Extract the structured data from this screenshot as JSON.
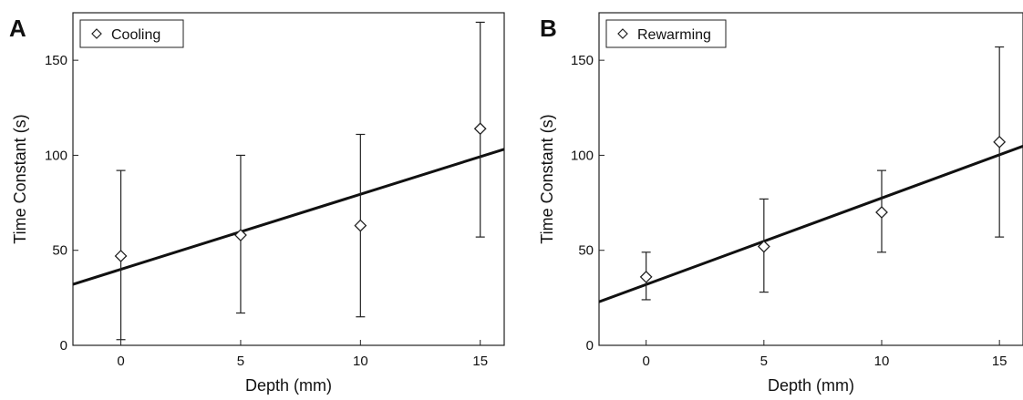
{
  "chart_data": [
    {
      "type": "scatter",
      "panel_label": "A",
      "title": "",
      "xlabel": "Depth (mm)",
      "ylabel": "Time Constant (s)",
      "xlim": [
        -2,
        16
      ],
      "ylim": [
        0,
        175
      ],
      "xticks": [
        0,
        5,
        10,
        15
      ],
      "yticks": [
        0,
        50,
        100,
        150
      ],
      "legend_position": "top-left",
      "grid": false,
      "series": [
        {
          "name": "Cooling",
          "marker": "diamond",
          "x": [
            0,
            5,
            10,
            15
          ],
          "y": [
            47,
            58,
            63,
            114
          ],
          "error_low": [
            3,
            17,
            15,
            57
          ],
          "error_high": [
            92,
            100,
            111,
            170
          ]
        }
      ],
      "fit_line": {
        "slope": 3.95,
        "intercept": 40
      }
    },
    {
      "type": "scatter",
      "panel_label": "B",
      "title": "",
      "xlabel": "Depth (mm)",
      "ylabel": "Time Constant (s)",
      "xlim": [
        -2,
        16
      ],
      "ylim": [
        0,
        175
      ],
      "xticks": [
        0,
        5,
        10,
        15
      ],
      "yticks": [
        0,
        50,
        100,
        150
      ],
      "legend_position": "top-left",
      "grid": false,
      "series": [
        {
          "name": "Rewarming",
          "marker": "diamond",
          "x": [
            0,
            5,
            10,
            15
          ],
          "y": [
            36,
            52,
            70,
            107
          ],
          "error_low": [
            24,
            28,
            49,
            57
          ],
          "error_high": [
            49,
            77,
            92,
            157
          ]
        }
      ],
      "fit_line": {
        "slope": 4.55,
        "intercept": 32
      }
    }
  ]
}
